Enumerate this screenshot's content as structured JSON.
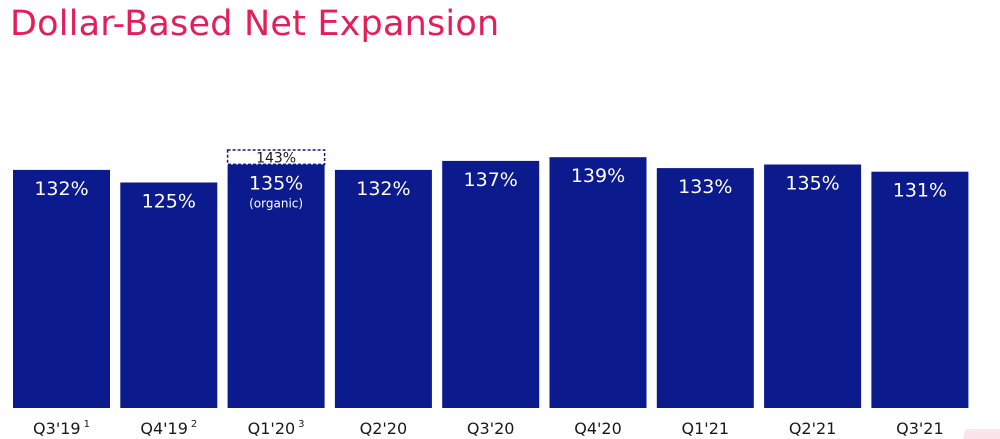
{
  "header": {
    "title": "Dollar-Based Net Expansion"
  },
  "chart_data": {
    "type": "bar",
    "title": "Dollar-Based Net Expansion",
    "xlabel": "",
    "ylabel": "",
    "grid": false,
    "legend": "none",
    "categories": [
      "Q3'19",
      "Q4'19",
      "Q1'20",
      "Q2'20",
      "Q3'20",
      "Q4'20",
      "Q1'21",
      "Q2'21",
      "Q3'21"
    ],
    "footnote_markers": [
      "1",
      "2",
      "3",
      "",
      "",
      "",
      "",
      "",
      ""
    ],
    "values": [
      132,
      125,
      135,
      132,
      137,
      139,
      133,
      135,
      131
    ],
    "value_labels": [
      "132%",
      "125%",
      "135%",
      "132%",
      "137%",
      "139%",
      "133%",
      "135%",
      "131%"
    ],
    "sublabels": [
      "",
      "",
      "(organic)",
      "",
      "",
      "",
      "",
      "",
      ""
    ],
    "annotation": {
      "category": "Q1'20",
      "value": 143,
      "label": "143%",
      "style": "dashed-outline"
    },
    "bar_color": "#0b1a8c",
    "title_color": "#e31e5a"
  }
}
